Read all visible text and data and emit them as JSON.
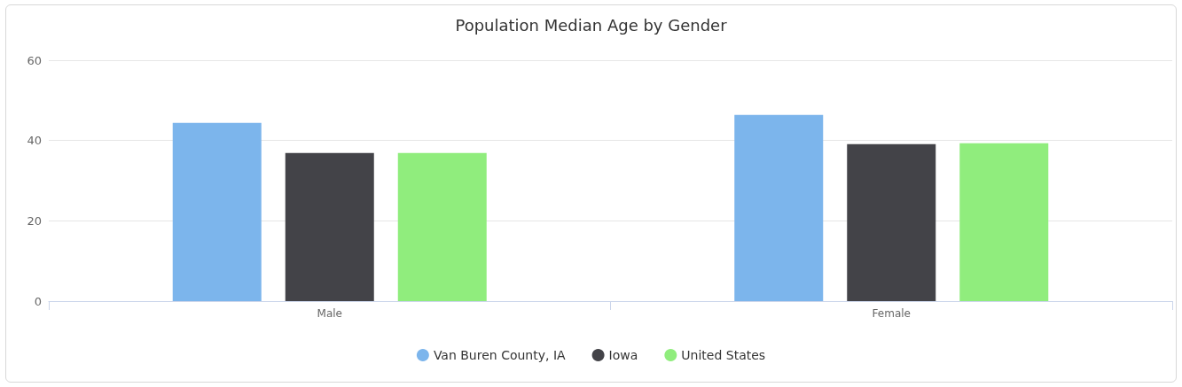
{
  "chart_data": {
    "type": "bar",
    "title": "Population Median Age by Gender",
    "categories": [
      "Male",
      "Female"
    ],
    "series": [
      {
        "name": "Van Buren County, IA",
        "color": "#7cb5ec",
        "values": [
          44.4,
          46.4
        ]
      },
      {
        "name": "Iowa",
        "color": "#434348",
        "values": [
          36.9,
          39.1
        ]
      },
      {
        "name": "United States",
        "color": "#90ed7d",
        "values": [
          36.9,
          39.3
        ]
      }
    ],
    "ylim": [
      0,
      60
    ],
    "yticks": [
      0,
      20,
      40,
      60
    ],
    "grid": "y",
    "legend": "bottom"
  }
}
